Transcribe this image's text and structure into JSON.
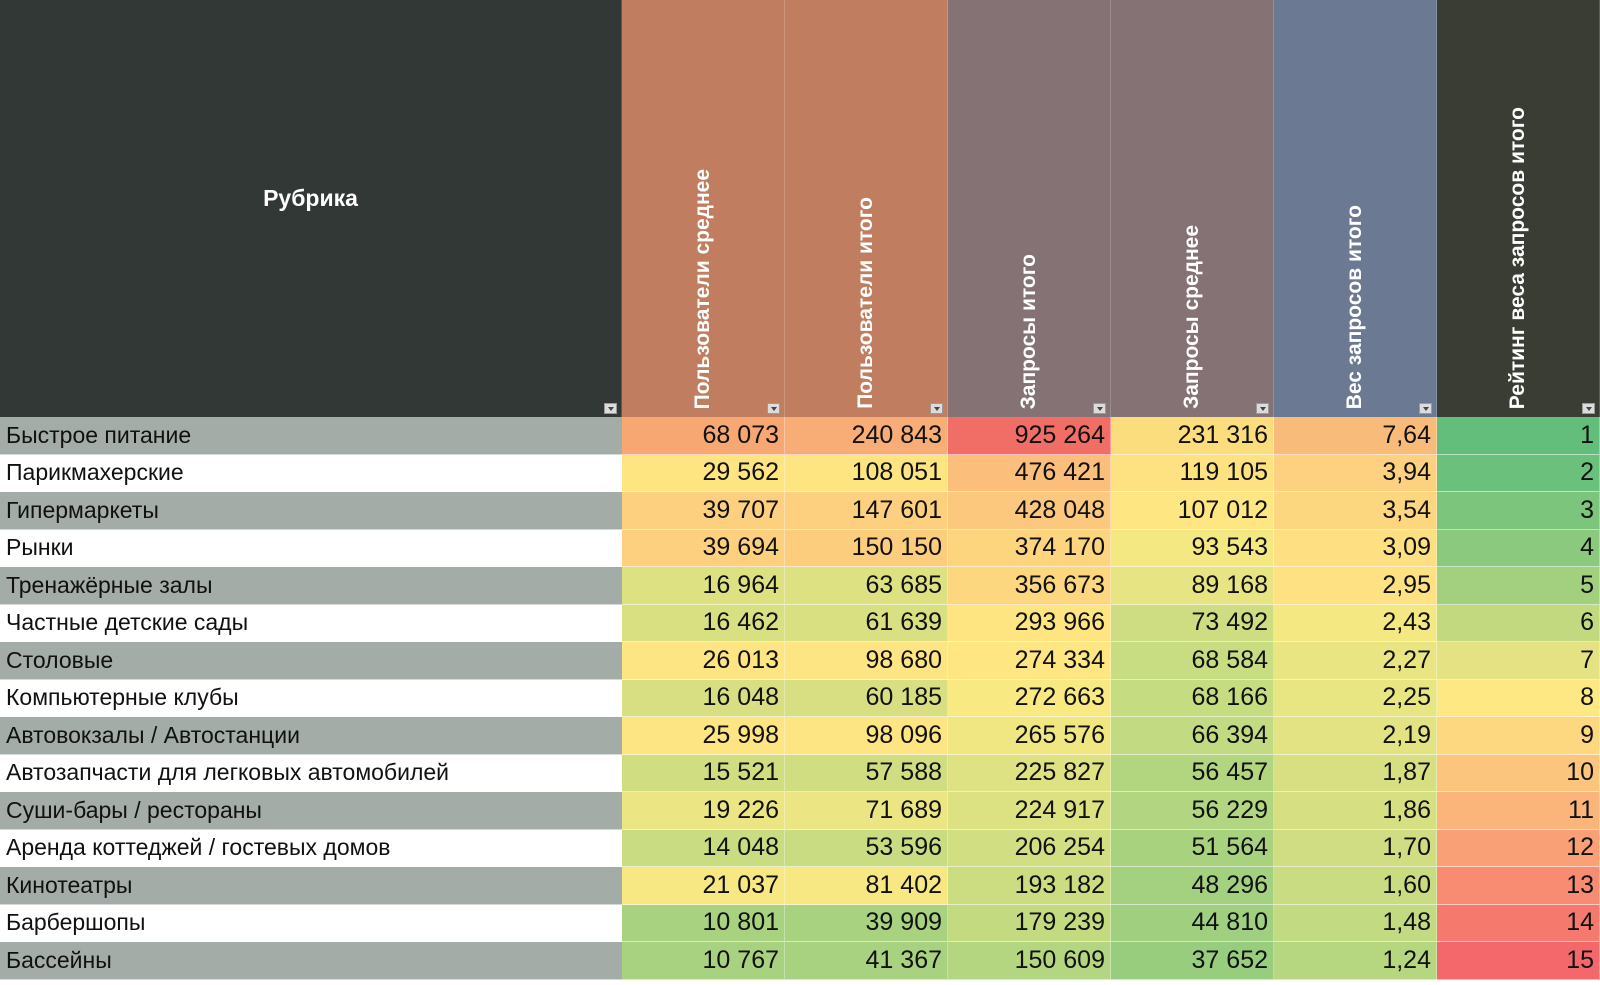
{
  "table": {
    "headers": [
      {
        "label": "Рубрика",
        "bg": "#323836"
      },
      {
        "label": "Пользователи среднее",
        "bg": "#c07d5f"
      },
      {
        "label": "Пользователи итого",
        "bg": "#c07d5f"
      },
      {
        "label": "Запросы итого",
        "bg": "#847275"
      },
      {
        "label": "Запросы среднее",
        "bg": "#847275"
      },
      {
        "label": "Вес запросов итого",
        "bg": "#6b7a92"
      },
      {
        "label": "Рейтинг веса запросов итого",
        "bg": "#3a3d33"
      }
    ],
    "rows": [
      {
        "category": "Быстрое питание",
        "users_avg": "68 073",
        "users_total": "240 843",
        "queries_total": "925 264",
        "queries_avg": "231 316",
        "weight": "7,64",
        "rank": "1",
        "colors": [
          "#f7a772",
          "#f8ad76",
          "#f06e66",
          "#fbdd7e",
          "#f9bb79",
          "#63be7b"
        ]
      },
      {
        "category": "Парикмахерские",
        "users_avg": "29 562",
        "users_total": "108 051",
        "queries_total": "476 421",
        "queries_avg": "119 105",
        "weight": "3,94",
        "rank": "2",
        "colors": [
          "#fee582",
          "#fee582",
          "#fbbf7b",
          "#fee282",
          "#fdd17f",
          "#6bc17c"
        ]
      },
      {
        "category": "Гипермаркеты",
        "users_avg": "39 707",
        "users_total": "147 601",
        "queries_total": "428 048",
        "queries_avg": "107 012",
        "weight": "3,54",
        "rank": "3",
        "colors": [
          "#fdd07f",
          "#fdd07f",
          "#fcc87d",
          "#fee683",
          "#fdd680",
          "#7bc57d"
        ]
      },
      {
        "category": "Рынки",
        "users_avg": "39 694",
        "users_total": "150 150",
        "queries_total": "374 170",
        "queries_avg": "93 543",
        "weight": "3,09",
        "rank": "4",
        "colors": [
          "#fdd07f",
          "#fdcd7e",
          "#fdd57f",
          "#f4e883",
          "#fee082",
          "#8bca7e"
        ]
      },
      {
        "category": "Тренажёрные залы",
        "users_avg": "16 964",
        "users_total": "63 685",
        "queries_total": "356 673",
        "queries_avg": "89 168",
        "weight": "2,95",
        "rank": "5",
        "colors": [
          "#dde182",
          "#dde182",
          "#fdd680",
          "#e6e483",
          "#fee182",
          "#a2d07f"
        ]
      },
      {
        "category": "Частные детские сады",
        "users_avg": "16 462",
        "users_total": "61 639",
        "queries_total": "293 966",
        "queries_avg": "73 492",
        "weight": "2,43",
        "rank": "6",
        "colors": [
          "#d9e082",
          "#d9e082",
          "#fee582",
          "#cedd82",
          "#f4e883",
          "#c2d980"
        ]
      },
      {
        "category": "Столовые",
        "users_avg": "26 013",
        "users_total": "98 680",
        "queries_total": "274 334",
        "queries_avg": "68 584",
        "weight": "2,27",
        "rank": "7",
        "colors": [
          "#fee583",
          "#fee583",
          "#fee683",
          "#c8dc81",
          "#e9e583",
          "#e4e283"
        ]
      },
      {
        "category": "Компьютерные клубы",
        "users_avg": "16 048",
        "users_total": "60 185",
        "queries_total": "272 663",
        "queries_avg": "68 166",
        "weight": "2,25",
        "rank": "8",
        "colors": [
          "#d7df82",
          "#d7df82",
          "#f8e983",
          "#c6dc81",
          "#e8e583",
          "#fee883"
        ]
      },
      {
        "category": "Автовокзалы / Автостанции",
        "users_avg": "25 998",
        "users_total": "98 096",
        "queries_total": "265 576",
        "queries_avg": "66 394",
        "weight": "2,19",
        "rank": "9",
        "colors": [
          "#fee583",
          "#fee583",
          "#f0e783",
          "#c2da81",
          "#e4e383",
          "#fed880"
        ]
      },
      {
        "category": "Автозапчасти для легковых автомобилей",
        "users_avg": "15 521",
        "users_total": "57 588",
        "queries_total": "225 827",
        "queries_avg": "56 457",
        "weight": "1,87",
        "rank": "10",
        "colors": [
          "#d1dd81",
          "#d1dd81",
          "#dfe282",
          "#b2d580",
          "#d7df82",
          "#fcc57d"
        ]
      },
      {
        "category": "Суши-бары / рестораны",
        "users_avg": "19 226",
        "users_total": "71 689",
        "queries_total": "224 917",
        "queries_avg": "56 229",
        "weight": "1,86",
        "rank": "11",
        "colors": [
          "#ebe583",
          "#ebe583",
          "#dce182",
          "#b1d580",
          "#d6df82",
          "#fbb47a"
        ]
      },
      {
        "category": "Аренда коттеджей / гостевых домов",
        "users_avg": "14 048",
        "users_total": "53 596",
        "queries_total": "206 254",
        "queries_avg": "51 564",
        "weight": "1,70",
        "rank": "12",
        "colors": [
          "#c9dc81",
          "#c9dc81",
          "#d2de82",
          "#a9d27f",
          "#d0dd82",
          "#f9a076"
        ]
      },
      {
        "category": "Кинотеатры",
        "users_avg": "21 037",
        "users_total": "81 402",
        "queries_total": "193 182",
        "queries_avg": "48 296",
        "weight": "1,60",
        "rank": "13",
        "colors": [
          "#f7e883",
          "#f7e883",
          "#ccdc81",
          "#a4d17f",
          "#cadc81",
          "#f78c72"
        ]
      },
      {
        "category": "Барбершопы",
        "users_avg": "10 801",
        "users_total": "39 909",
        "queries_total": "179 239",
        "queries_avg": "44 810",
        "weight": "1,48",
        "rank": "14",
        "colors": [
          "#a8d27f",
          "#a8d27f",
          "#c3da81",
          "#9fcf7f",
          "#c2da81",
          "#f6796e"
        ]
      },
      {
        "category": "Бассейны",
        "users_avg": "10 767",
        "users_total": "41 367",
        "queries_total": "150 609",
        "queries_avg": "37 652",
        "weight": "1,24",
        "rank": "15",
        "colors": [
          "#a8d27f",
          "#a8d27f",
          "#b5d680",
          "#98cd7e",
          "#b6d680",
          "#f4676b"
        ]
      }
    ]
  }
}
